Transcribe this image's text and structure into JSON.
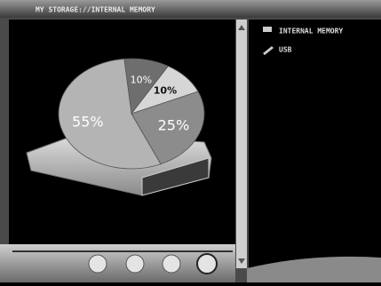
{
  "header": {
    "title": "MY STORAGE://INTERNAL MEMORY"
  },
  "chart_data": {
    "type": "pie",
    "values": [
      10,
      10,
      25,
      55
    ],
    "value_labels": [
      "10%",
      "10%",
      "25%",
      "55%"
    ],
    "colors": [
      "#6e6e6e",
      "#d6d6d6",
      "#8c8c8c",
      "#b4b4b4"
    ]
  },
  "sidebar": {
    "items": [
      "INTERNAL MEMORY",
      "USB"
    ]
  }
}
